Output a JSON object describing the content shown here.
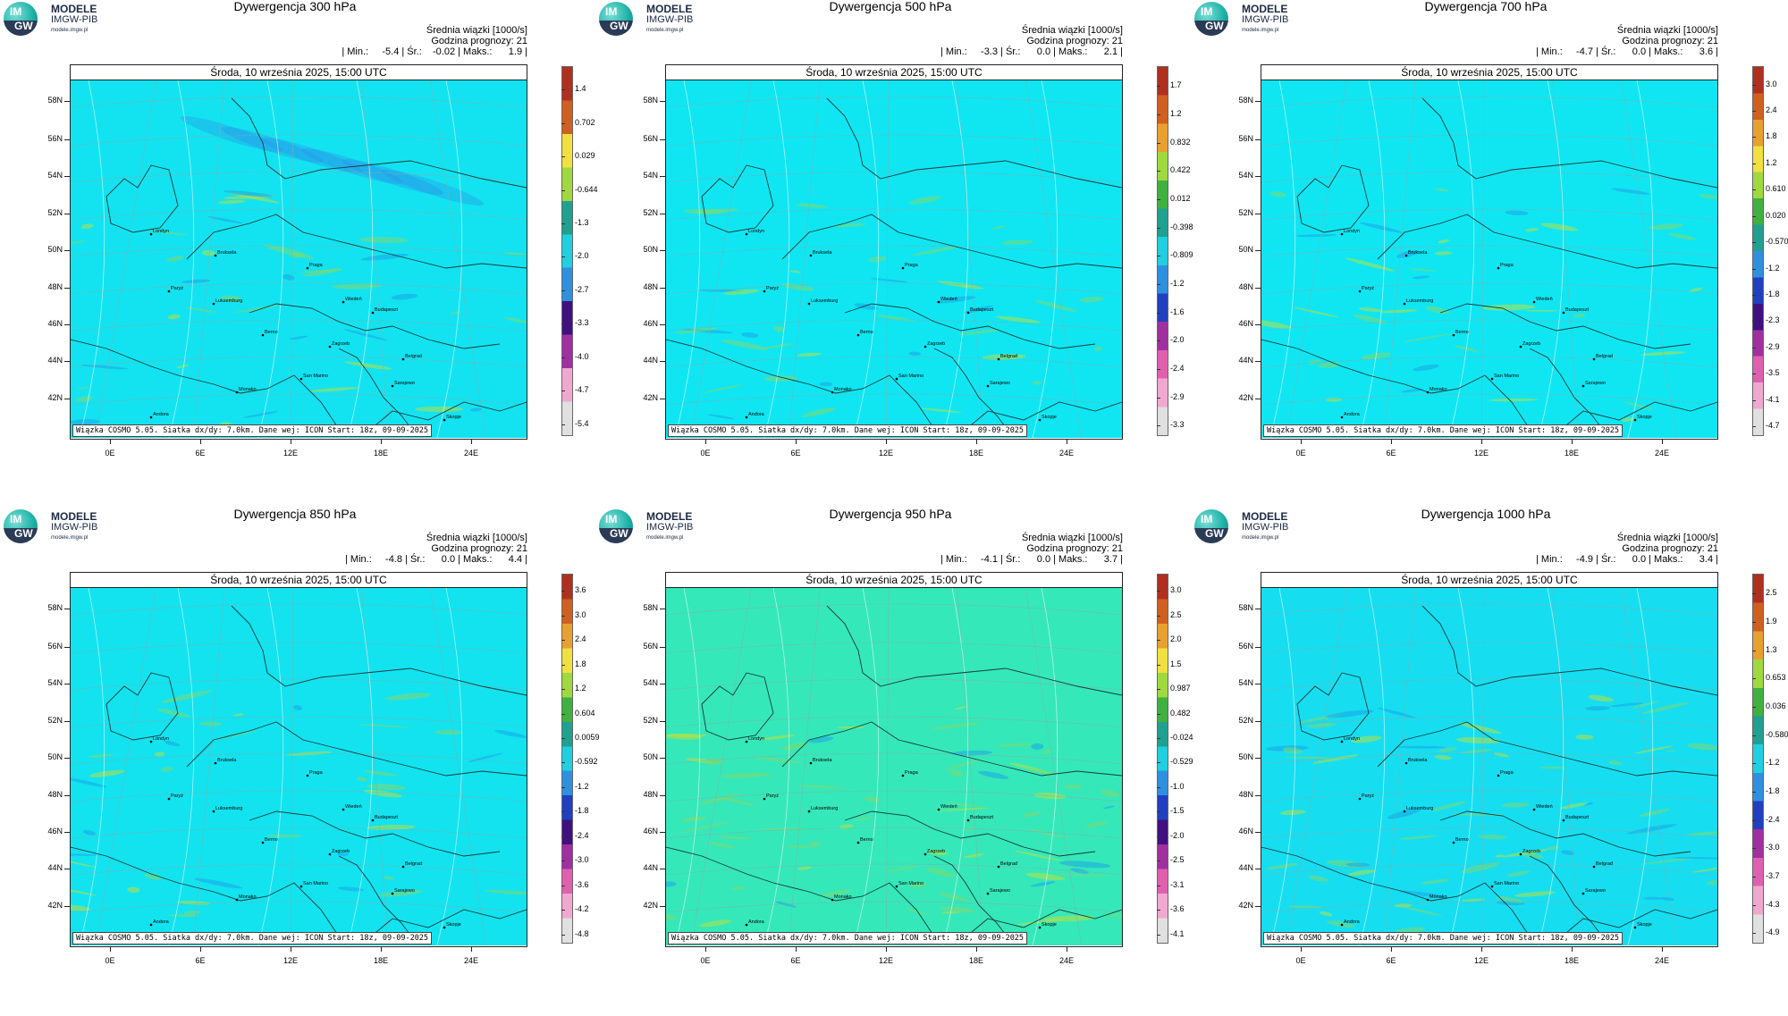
{
  "logo": {
    "line1": "MODELE",
    "line2": "IMGW-PIB",
    "line3": "modele.imgw.pl",
    "mark_top": "IM",
    "mark_bottom": "GW"
  },
  "common": {
    "stats_line1": "Średnia wiązki [1000/s]",
    "stats_line2": "Godzina prognozy: 21",
    "date_header": "Środa, 10 września 2025, 15:00 UTC",
    "footer": "Wiązka COSMO 5.05. Siatka dx/dy: 7.0km. Dane wej: ICON Start: 18z, 09-09-2025",
    "lat_labels": [
      "58N",
      "56N",
      "54N",
      "52N",
      "50N",
      "48N",
      "46N",
      "44N",
      "42N"
    ],
    "lon_labels": [
      "0E",
      "6E",
      "12E",
      "18E",
      "24E"
    ],
    "cities": [
      "Londyn",
      "Bruksela",
      "Paryż",
      "Luksemburg",
      "Praga",
      "Wiedeń",
      "Budapeszt",
      "Berno",
      "Zagrzeb",
      "Belgrad",
      "San Marino",
      "Sarajewo",
      "Monako",
      "Andora",
      "Skopje",
      "Rzym"
    ]
  },
  "chart_data": [
    {
      "type": "heatmap",
      "title": "Dywergencja 300 hPa",
      "stats_values": "| Min.:     -5.4 | Śr.:    -0.02 | Maks.:      1.9 |",
      "min": -5.4,
      "mean": -0.02,
      "max": 1.9,
      "colorbar_ticks": [
        "1.4",
        "0.702",
        "0.029",
        "-0.644",
        "-1.3",
        "-2.0",
        "-2.7",
        "-3.3",
        "-4.0",
        "-4.7",
        "-5.4"
      ]
    },
    {
      "type": "heatmap",
      "title": "Dywergencja 500 hPa",
      "stats_values": "| Min.:     -3.3 | Śr.:      0.0 | Maks.:      2.1 |",
      "min": -3.3,
      "mean": 0.0,
      "max": 2.1,
      "colorbar_ticks": [
        "1.7",
        "1.2",
        "0.832",
        "0.422",
        "0.012",
        "-0.398",
        "-0.809",
        "-1.2",
        "-1.6",
        "-2.0",
        "-2.4",
        "-2.9",
        "-3.3"
      ]
    },
    {
      "type": "heatmap",
      "title": "Dywergencja 700 hPa",
      "stats_values": "| Min.:     -4.7 | Śr.:      0.0 | Maks.:      3.6 |",
      "min": -4.7,
      "mean": 0.0,
      "max": 3.6,
      "colorbar_ticks": [
        "3.0",
        "2.4",
        "1.8",
        "1.2",
        "0.610",
        "0.020",
        "-0.570",
        "-1.2",
        "-1.8",
        "-2.3",
        "-2.9",
        "-3.5",
        "-4.1",
        "-4.7"
      ]
    },
    {
      "type": "heatmap",
      "title": "Dywergencja 850 hPa",
      "stats_values": "| Min.:     -4.8 | Śr.:      0.0 | Maks.:      4.4 |",
      "min": -4.8,
      "mean": 0.0,
      "max": 4.4,
      "colorbar_ticks": [
        "3.6",
        "3.0",
        "2.4",
        "1.8",
        "1.2",
        "0.604",
        "0.0059",
        "-0.592",
        "-1.2",
        "-1.8",
        "-2.4",
        "-3.0",
        "-3.6",
        "-4.2",
        "-4.8"
      ]
    },
    {
      "type": "heatmap",
      "title": "Dywergencja 950 hPa",
      "stats_values": "| Min.:     -4.1 | Śr.:      0.0 | Maks.:      3.7 |",
      "min": -4.1,
      "mean": 0.0,
      "max": 3.7,
      "colorbar_ticks": [
        "3.0",
        "2.5",
        "2.0",
        "1.5",
        "0.987",
        "0.482",
        "-0.024",
        "-0.529",
        "-1.0",
        "-1.5",
        "-2.0",
        "-2.5",
        "-3.1",
        "-3.6",
        "-4.1"
      ]
    },
    {
      "type": "heatmap",
      "title": "Dywergencja 1000 hPa",
      "stats_values": "| Min.:     -4.9 | Śr.:      0.0 | Maks.:      3.4 |",
      "min": -4.9,
      "mean": 0.0,
      "max": 3.4,
      "colorbar_ticks": [
        "2.5",
        "1.9",
        "1.3",
        "0.653",
        "0.036",
        "-0.580",
        "-1.2",
        "-1.8",
        "-2.4",
        "-3.0",
        "-3.7",
        "-4.3",
        "-4.9"
      ]
    }
  ]
}
